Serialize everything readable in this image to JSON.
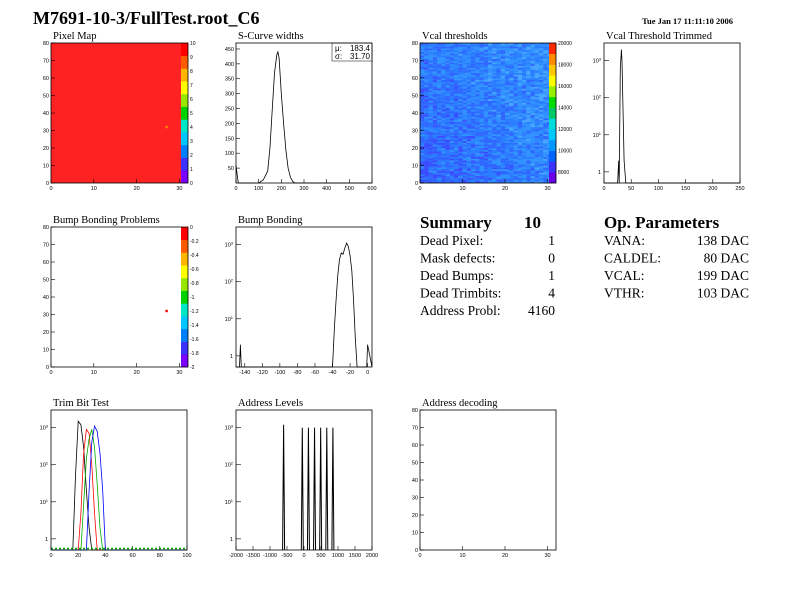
{
  "header": {
    "title": "M7691-10-3/FullTest.root_C6",
    "timestamp": "Tue Jan 17 11:11:10 2006"
  },
  "summary": {
    "title": "Summary",
    "count": "10",
    "rows": [
      {
        "label": "Dead Pixel:",
        "value": "1"
      },
      {
        "label": "Mask defects:",
        "value": "0"
      },
      {
        "label": "Dead Bumps:",
        "value": "1"
      },
      {
        "label": "Dead Trimbits:",
        "value": "4"
      },
      {
        "label": "Address Probl:",
        "value": "4160"
      }
    ]
  },
  "op_parameters": {
    "title": "Op. Parameters",
    "rows": [
      {
        "label": "VANA:",
        "value": "138 DAC"
      },
      {
        "label": "CALDEL:",
        "value": "80 DAC"
      },
      {
        "label": "VCAL:",
        "value": "199 DAC"
      },
      {
        "label": "VTHR:",
        "value": "103 DAC"
      }
    ]
  },
  "chart_data": [
    {
      "id": "pixel_map",
      "type": "heatmap",
      "title": "Pixel Map",
      "xlim": [
        0,
        32
      ],
      "ylim": [
        0,
        80
      ],
      "xticks": [
        0,
        10,
        20,
        30
      ],
      "yticks": [
        0,
        10,
        20,
        30,
        40,
        50,
        60,
        70,
        80
      ],
      "zticks": [
        0,
        1,
        2,
        3,
        4,
        5,
        6,
        7,
        8,
        9,
        10
      ],
      "zlim": [
        0,
        10
      ],
      "fill_value": 10,
      "special_pixels": [
        {
          "x": 27,
          "y": 32,
          "value": 9
        }
      ],
      "fill_color": "#ff2222"
    },
    {
      "id": "scurve_widths",
      "type": "line",
      "title": "S-Curve widths",
      "xlim": [
        0,
        600
      ],
      "ylim": [
        0,
        470
      ],
      "xticks": [
        0,
        100,
        200,
        300,
        400,
        500,
        600
      ],
      "yticks": [
        50,
        100,
        150,
        200,
        250,
        300,
        350,
        400,
        450
      ],
      "stats": [
        {
          "label": "μ:",
          "value": "183.4"
        },
        {
          "label": "σ:",
          "value": "31.70"
        }
      ],
      "x": [
        0,
        5,
        10,
        100,
        120,
        140,
        150,
        160,
        170,
        180,
        185,
        190,
        200,
        210,
        220,
        230,
        240,
        250,
        260,
        280,
        600
      ],
      "y": [
        60,
        30,
        0,
        0,
        10,
        40,
        120,
        250,
        370,
        430,
        440,
        420,
        300,
        200,
        110,
        50,
        20,
        5,
        0,
        0,
        0
      ]
    },
    {
      "id": "vcal_thresholds",
      "type": "heatmap",
      "title": "Vcal thresholds",
      "xlim": [
        0,
        32
      ],
      "ylim": [
        0,
        80
      ],
      "xticks": [
        0,
        10,
        20,
        30
      ],
      "yticks": [
        0,
        10,
        20,
        30,
        40,
        50,
        60,
        70,
        80
      ],
      "zticks": [
        8000,
        10000,
        12000,
        14000,
        16000,
        18000,
        20000
      ],
      "zlim": [
        7000,
        20000
      ],
      "base_value": 10500
    },
    {
      "id": "vcal_threshold_trimmed",
      "type": "line",
      "title": "Vcal Threshold Trimmed",
      "xlim": [
        0,
        250
      ],
      "log_y": true,
      "ylim": [
        0.5,
        3000
      ],
      "xticks": [
        0,
        50,
        100,
        150,
        200,
        250
      ],
      "x": [
        0,
        25,
        27,
        28,
        30,
        32,
        33,
        35,
        37,
        40,
        250
      ],
      "y": [
        0.5,
        0.5,
        2,
        0.5,
        600,
        2000,
        1000,
        50,
        2,
        0.5,
        0.5
      ]
    },
    {
      "id": "bump_bonding_problems",
      "type": "heatmap",
      "title": "Bump Bonding Problems",
      "xlim": [
        0,
        32
      ],
      "ylim": [
        0,
        80
      ],
      "xticks": [
        0,
        10,
        20,
        30
      ],
      "yticks": [
        0,
        10,
        20,
        30,
        40,
        50,
        60,
        70,
        80
      ],
      "zticks": [
        0,
        -0.2,
        -0.4,
        -0.6,
        -0.8,
        -1,
        -1.2,
        -1.4,
        -1.6,
        -1.8,
        -2
      ],
      "zlim": [
        -2,
        0
      ],
      "special_pixels": [
        {
          "x": 27,
          "y": 32,
          "value": 0
        }
      ]
    },
    {
      "id": "bump_bonding",
      "type": "line",
      "title": "Bump Bonding",
      "xlim": [
        -150,
        5
      ],
      "log_y": true,
      "ylim": [
        0.5,
        3000
      ],
      "xticks": [
        -140,
        -120,
        -100,
        -80,
        -60,
        -40,
        -20,
        0
      ],
      "x": [
        -150,
        -146,
        -145,
        -144,
        -40,
        -38,
        -36,
        -34,
        -32,
        -30,
        -28,
        -26,
        -24,
        -22,
        -20,
        -18,
        -16,
        -14,
        -12,
        -1,
        0,
        5
      ],
      "y": [
        0.5,
        0.5,
        2,
        0.5,
        0.5,
        5,
        30,
        150,
        400,
        600,
        550,
        800,
        1100,
        900,
        500,
        200,
        30,
        3,
        0.5,
        0.5,
        2,
        0.5
      ]
    },
    {
      "id": "trim_bit_test",
      "type": "line",
      "title": "Trim Bit Test",
      "xlim": [
        0,
        100
      ],
      "log_y": true,
      "ylim": [
        0.5,
        3000
      ],
      "xticks": [
        0,
        20,
        40,
        60,
        80,
        100
      ],
      "series": [
        {
          "color": "#000000",
          "x": [
            0,
            16,
            18,
            20,
            22,
            24,
            26,
            28,
            30,
            100
          ],
          "y": [
            0.5,
            0.5,
            50,
            1500,
            1200,
            300,
            20,
            2,
            0.5,
            0.5
          ]
        },
        {
          "color": "#ff0000",
          "x": [
            0,
            20,
            22,
            24,
            26,
            28,
            30,
            32,
            34,
            100
          ],
          "y": [
            0.5,
            0.5,
            5,
            200,
            900,
            700,
            100,
            5,
            0.5,
            0.5
          ]
        },
        {
          "color": "#00aa00",
          "x": [
            0,
            22,
            24,
            26,
            28,
            30,
            32,
            34,
            36,
            38,
            100
          ],
          "y": [
            0.5,
            0.5,
            8,
            150,
            500,
            900,
            300,
            30,
            2,
            0.5,
            0.5
          ]
        },
        {
          "color": "#0000ff",
          "x": [
            0,
            26,
            28,
            30,
            32,
            34,
            36,
            38,
            40,
            100
          ],
          "y": [
            0.5,
            0.5,
            20,
            400,
            1100,
            800,
            200,
            20,
            0.5,
            0.5
          ]
        }
      ]
    },
    {
      "id": "address_levels",
      "type": "line",
      "title": "Address Levels",
      "xlim": [
        -2000,
        2000
      ],
      "log_y": true,
      "ylim": [
        0.5,
        3000
      ],
      "xticks": [
        -2000,
        -1500,
        -1000,
        -500,
        0,
        500,
        1000,
        1500,
        2000
      ],
      "peaks": [
        {
          "x": -600,
          "y": 1200
        },
        {
          "x": -50,
          "y": 1000
        },
        {
          "x": 130,
          "y": 1000
        },
        {
          "x": 310,
          "y": 1000
        },
        {
          "x": 490,
          "y": 1000
        },
        {
          "x": 670,
          "y": 1000
        },
        {
          "x": 850,
          "y": 1000
        }
      ]
    },
    {
      "id": "address_decoding",
      "type": "heatmap",
      "title": "Address decoding",
      "xlim": [
        0,
        32
      ],
      "ylim": [
        0,
        80
      ],
      "xticks": [
        0,
        10,
        20,
        30
      ],
      "yticks": [
        0,
        10,
        20,
        30,
        40,
        50,
        60,
        70,
        80
      ]
    }
  ]
}
